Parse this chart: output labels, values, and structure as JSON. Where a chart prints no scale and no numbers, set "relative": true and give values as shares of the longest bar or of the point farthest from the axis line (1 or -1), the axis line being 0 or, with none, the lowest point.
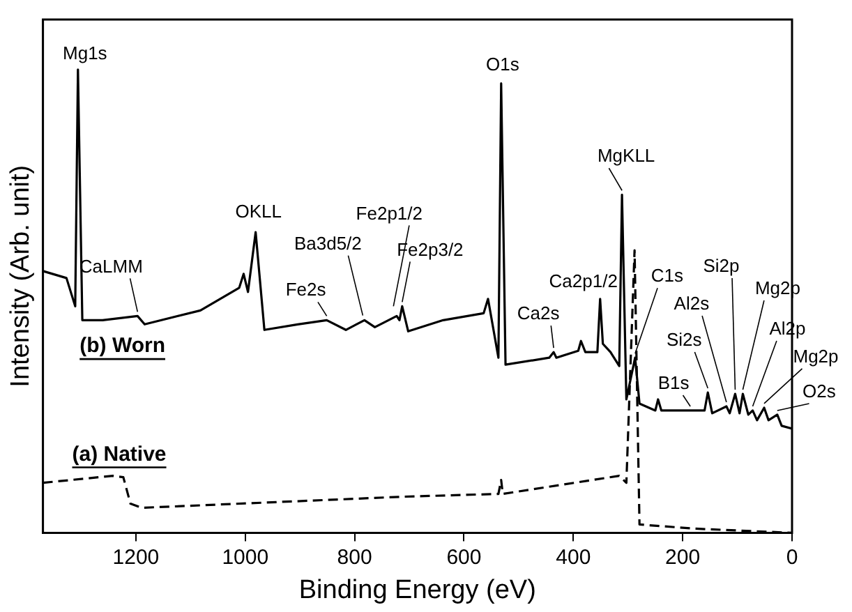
{
  "chart_data": {
    "type": "line",
    "relative": true,
    "xlabel": "Binding Energy (eV)",
    "ylabel": "Intensity (Arb. unit)",
    "xlim": [
      1370,
      0
    ],
    "xticks": [
      1200,
      1000,
      800,
      600,
      400,
      200,
      0
    ],
    "grid": false,
    "marker": "none",
    "series": [
      {
        "name": "(b) Worn",
        "color": "#000000",
        "line_style": "solid",
        "x": [
          1370,
          1327,
          1311,
          1306,
          1298,
          1261,
          1197,
          1184,
          1082,
          1011,
          1003,
          995,
          981,
          965,
          904,
          851,
          816,
          782,
          763,
          723,
          718,
          713,
          702,
          638,
          564,
          556,
          537,
          532,
          524,
          444,
          436,
          431,
          391,
          386,
          378,
          356,
          351,
          346,
          332,
          316,
          311,
          303,
          287,
          279,
          250,
          245,
          239,
          178,
          160,
          154,
          146,
          120,
          114,
          104,
          96,
          90,
          80,
          72,
          64,
          51,
          43,
          27,
          19,
          0
        ],
        "values": [
          0.565,
          0.55,
          0.489,
          1,
          0.459,
          0.459,
          0.468,
          0.45,
          0.48,
          0.529,
          0.559,
          0.52,
          0.649,
          0.438,
          0.45,
          0.459,
          0.438,
          0.459,
          0.444,
          0.468,
          0.459,
          0.489,
          0.435,
          0.459,
          0.474,
          0.505,
          0.378,
          0.97,
          0.363,
          0.378,
          0.39,
          0.378,
          0.393,
          0.414,
          0.39,
          0.39,
          0.505,
          0.408,
          0.39,
          0.36,
          0.73,
          0.288,
          0.378,
          0.279,
          0.264,
          0.288,
          0.264,
          0.264,
          0.264,
          0.303,
          0.258,
          0.273,
          0.258,
          0.3,
          0.258,
          0.3,
          0.255,
          0.264,
          0.243,
          0.27,
          0.243,
          0.255,
          0.231,
          0.225
        ]
      },
      {
        "name": "(a) Native",
        "color": "#000000",
        "line_style": "dashed",
        "x": [
          1370,
          1242,
          1223,
          1210,
          1189,
          710,
          537,
          532,
          529,
          316,
          303,
          288,
          279,
          178,
          0
        ],
        "values": [
          0.108,
          0.123,
          0.12,
          0.063,
          0.054,
          0.078,
          0.084,
          0.114,
          0.084,
          0.123,
          0.108,
          0.61,
          0.018,
          0.009,
          0
        ]
      }
    ],
    "annotations": [
      {
        "text": "Mg1s",
        "x": 1306,
        "y": 1
      },
      {
        "text": "CaLMM",
        "x": 1197,
        "y": 0.468
      },
      {
        "text": "OKLL",
        "x": 981,
        "y": 0.649
      },
      {
        "text": "Fe2s",
        "x": 851,
        "y": 0.459
      },
      {
        "text": "Ba3d5/2",
        "x": 785,
        "y": 0.46
      },
      {
        "text": "Fe2p1/2",
        "x": 729,
        "y": 0.48
      },
      {
        "text": "Fe2p3/2",
        "x": 713,
        "y": 0.489
      },
      {
        "text": "O1s",
        "x": 532,
        "y": 0.97
      },
      {
        "text": "MgKLL",
        "x": 311,
        "y": 0.73
      },
      {
        "text": "Ca2s",
        "x": 436,
        "y": 0.39
      },
      {
        "text": "Ca2p1/2",
        "x": 351,
        "y": 0.505
      },
      {
        "text": "C1s",
        "x": 287,
        "y": 0.378
      },
      {
        "text": "Si2p",
        "x": 104,
        "y": 0.3
      },
      {
        "text": "Al2s",
        "x": 120,
        "y": 0.273
      },
      {
        "text": "Si2s",
        "x": 154,
        "y": 0.303
      },
      {
        "text": "Mg2p",
        "x": 90,
        "y": 0.3
      },
      {
        "text": "Al2p",
        "x": 72,
        "y": 0.264
      },
      {
        "text": "Mg2p",
        "x": 51,
        "y": 0.27
      },
      {
        "text": "O2s",
        "x": 27,
        "y": 0.255
      },
      {
        "text": "B1s",
        "x": 186,
        "y": 0.264
      }
    ]
  }
}
